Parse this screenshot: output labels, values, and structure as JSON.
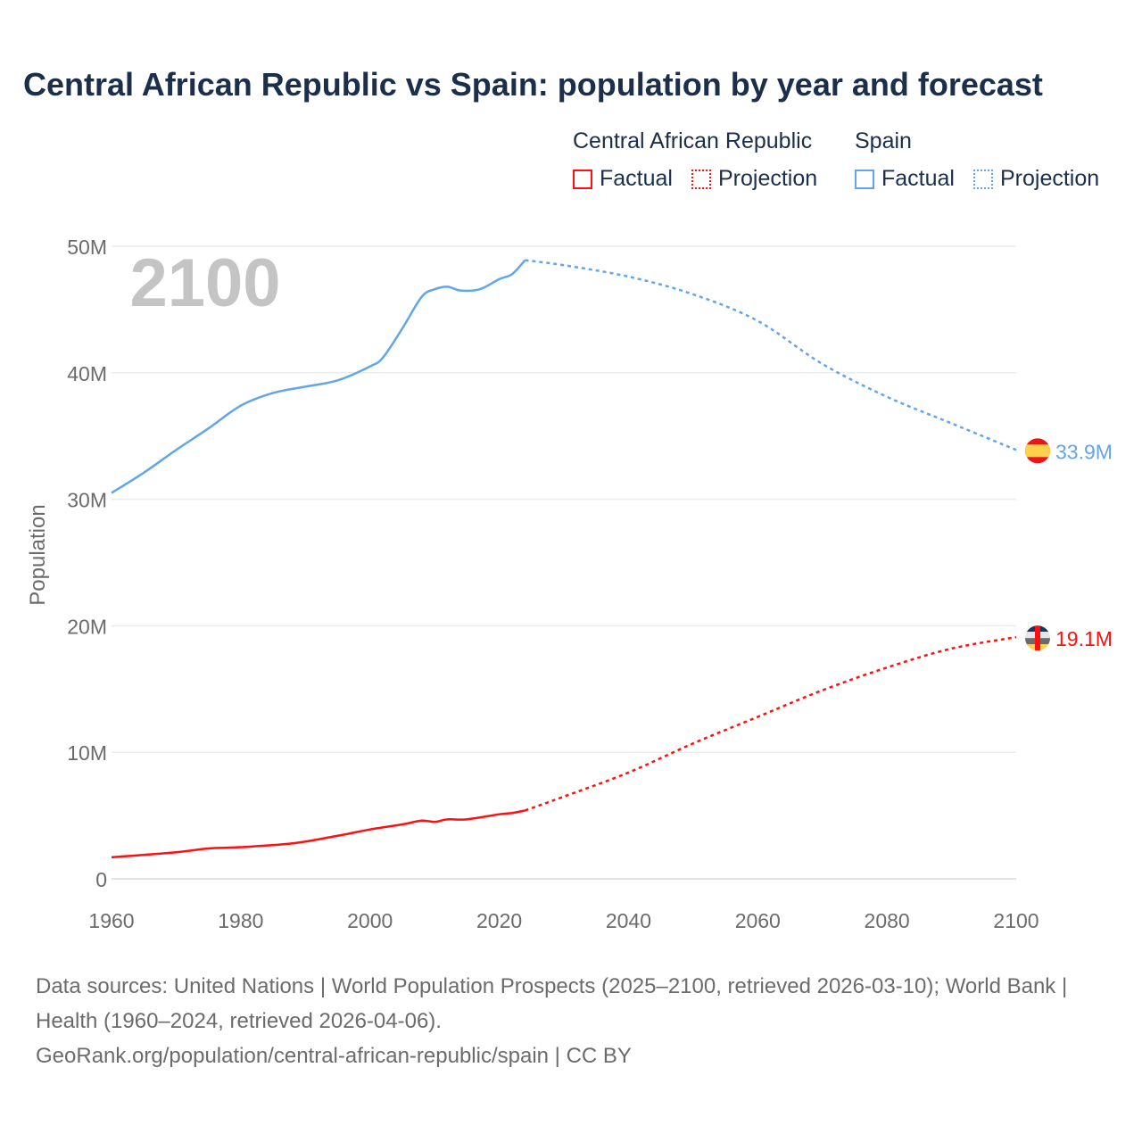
{
  "chart_data": {
    "type": "line",
    "title": "Central African Republic vs Spain: population by year and forecast",
    "xlabel": "",
    "ylabel": "Population",
    "xlim": [
      1960,
      2100
    ],
    "ylim": [
      0,
      50
    ],
    "y_unit": "M",
    "x_ticks": [
      "1960",
      "1980",
      "2000",
      "2020",
      "2040",
      "2060",
      "2080",
      "2100"
    ],
    "y_ticks": [
      "0",
      "10M",
      "20M",
      "30M",
      "40M",
      "50M"
    ],
    "grid": true,
    "year_label": "2100",
    "legend": {
      "placement": "top-right",
      "groups": [
        {
          "name": "Central African Republic",
          "items": [
            "Factual",
            "Projection"
          ]
        },
        {
          "name": "Spain",
          "items": [
            "Factual",
            "Projection"
          ]
        }
      ]
    },
    "series": [
      {
        "name": "Spain",
        "color": "#62a6ea",
        "end_label": "33.9M",
        "factual": {
          "x": [
            1960,
            1965,
            1970,
            1975,
            1980,
            1985,
            1990,
            1995,
            2000,
            2002,
            2005,
            2008,
            2010,
            2012,
            2014,
            2017,
            2020,
            2022,
            2024
          ],
          "y": [
            30.5,
            32.1,
            33.9,
            35.6,
            37.4,
            38.4,
            38.9,
            39.4,
            40.5,
            41.2,
            43.5,
            46.0,
            46.6,
            46.8,
            46.5,
            46.6,
            47.4,
            47.8,
            48.9
          ]
        },
        "projection": {
          "x": [
            2024,
            2030,
            2040,
            2050,
            2060,
            2070,
            2080,
            2090,
            2100
          ],
          "y": [
            48.9,
            48.5,
            47.6,
            46.2,
            44.1,
            40.7,
            38.1,
            36.0,
            33.9
          ]
        }
      },
      {
        "name": "Central African Republic",
        "color": "#ff1010",
        "end_label": "19.1M",
        "factual": {
          "x": [
            1960,
            1970,
            1975,
            1980,
            1988,
            1995,
            2000,
            2005,
            2008,
            2010,
            2012,
            2015,
            2020,
            2022,
            2024
          ],
          "y": [
            1.7,
            2.1,
            2.4,
            2.5,
            2.8,
            3.4,
            3.9,
            4.3,
            4.6,
            4.5,
            4.7,
            4.7,
            5.1,
            5.2,
            5.4
          ]
        },
        "projection": {
          "x": [
            2024,
            2030,
            2040,
            2050,
            2060,
            2070,
            2080,
            2090,
            2100
          ],
          "y": [
            5.4,
            6.5,
            8.4,
            10.7,
            12.8,
            14.9,
            16.7,
            18.2,
            19.1
          ]
        }
      }
    ]
  },
  "footer": {
    "sources": "Data sources: United Nations | World Population Prospects (2025–2100, retrieved 2026-03-10); World Bank | Health (1960–2024, retrieved 2026-04-06).",
    "link": "GeoRank.org/population/central-african-republic/spain | CC BY"
  }
}
